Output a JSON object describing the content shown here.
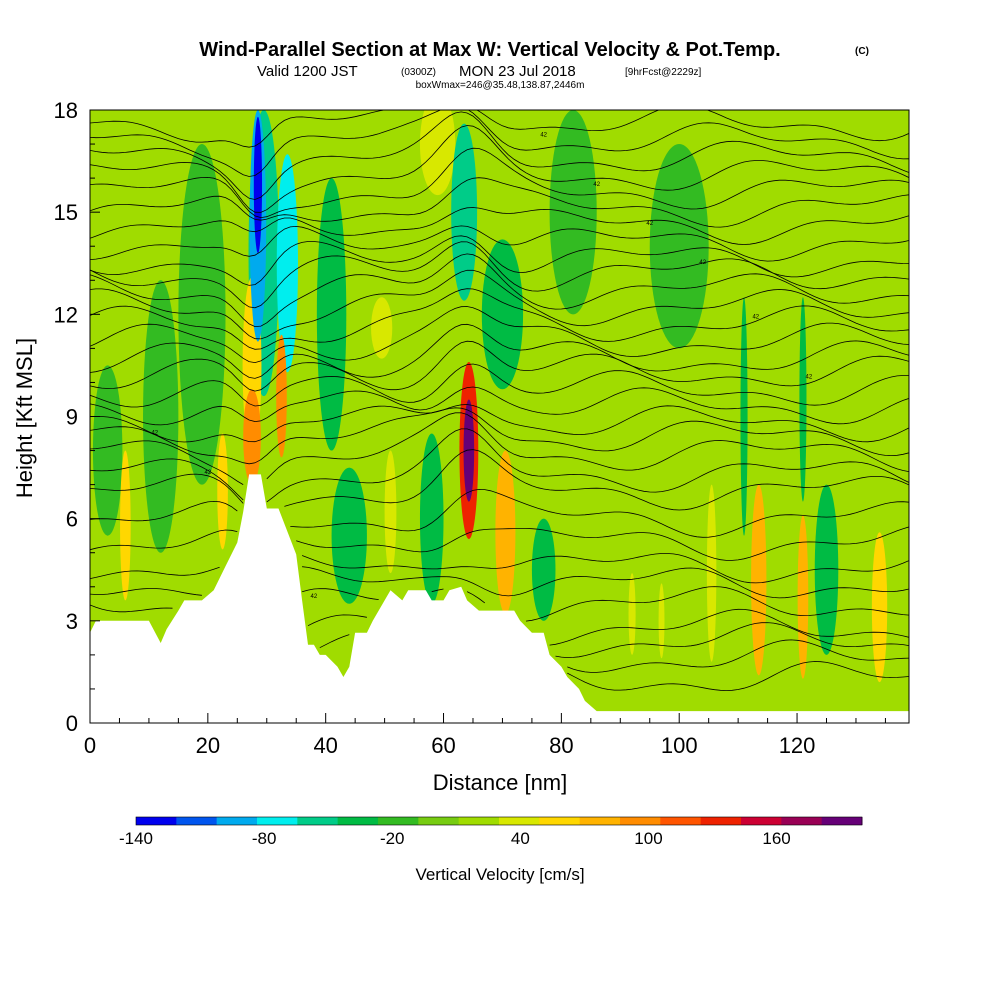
{
  "header": {
    "title": "Wind-Parallel Section at Max W: Vertical Velocity & Pot.Temp.",
    "title_mark": "(C)",
    "valid_prefix": "Valid 1200 JST",
    "valid_z": "(0300Z)",
    "valid_date": "MON 23 Jul 2018",
    "fcst": "[9hrFcst@2229z]",
    "box_info": "boxWmax=246@35.48,138.87,2446m"
  },
  "chart_data": {
    "type": "heatmap",
    "xlabel": "Distance [nm]",
    "ylabel": "Height [Kft MSL]",
    "xlim": [
      0,
      139
    ],
    "ylim": [
      0,
      18
    ],
    "x_ticks": [
      0,
      20,
      40,
      60,
      80,
      100,
      120
    ],
    "y_ticks": [
      0,
      3,
      6,
      9,
      12,
      15,
      18
    ],
    "x_tick_labels": [
      "0",
      "20",
      "40",
      "60",
      "80",
      "100",
      "120"
    ],
    "y_tick_labels": [
      "0",
      "3",
      "6",
      "9",
      "12",
      "15",
      "18"
    ],
    "x_minor_step": 5,
    "y_minor_step": 1,
    "background_color": "#a0dc00",
    "terrain_color": "#ffffff",
    "terrain_profile": [
      [
        0,
        2.65
      ],
      [
        1,
        3
      ],
      [
        10,
        3
      ],
      [
        12,
        2.35
      ],
      [
        13,
        2.75
      ],
      [
        15,
        3.3
      ],
      [
        16,
        3.6
      ],
      [
        19,
        3.6
      ],
      [
        21,
        3.9
      ],
      [
        22,
        4.25
      ],
      [
        23,
        4.6
      ],
      [
        25,
        5.3
      ],
      [
        26,
        6.2
      ],
      [
        27,
        7.3
      ],
      [
        29,
        7.3
      ],
      [
        30,
        6.3
      ],
      [
        31,
        6.3
      ],
      [
        32,
        6.3
      ],
      [
        35,
        4.95
      ],
      [
        36,
        3.6
      ],
      [
        37,
        2.3
      ],
      [
        38,
        2.3
      ],
      [
        39,
        2.0
      ],
      [
        40,
        2.0
      ],
      [
        42,
        1.65
      ],
      [
        43,
        1.35
      ],
      [
        44,
        1.65
      ],
      [
        45,
        2.65
      ],
      [
        47,
        2.65
      ],
      [
        48,
        3.0
      ],
      [
        50,
        3.6
      ],
      [
        51,
        3.9
      ],
      [
        53,
        3.6
      ],
      [
        54,
        3.9
      ],
      [
        57,
        3.9
      ],
      [
        58,
        3.6
      ],
      [
        60,
        3.6
      ],
      [
        61,
        3.9
      ],
      [
        63,
        4.0
      ],
      [
        64,
        3.6
      ],
      [
        66,
        3.3
      ],
      [
        67,
        3.3
      ],
      [
        72,
        3.3
      ],
      [
        73,
        3.0
      ],
      [
        75,
        2.65
      ],
      [
        77,
        2.65
      ],
      [
        78,
        2.0
      ],
      [
        80,
        1.65
      ],
      [
        81,
        1.35
      ],
      [
        83,
        1.0
      ],
      [
        84,
        0.65
      ],
      [
        86,
        0.35
      ],
      [
        88,
        0.35
      ],
      [
        139,
        0.35
      ]
    ],
    "w_field": [
      {
        "x": 28.5,
        "y": 15.8,
        "sx": 0.7,
        "sy": 2.0,
        "v": -140
      },
      {
        "x": 28.5,
        "y": 14.6,
        "sx": 1.4,
        "sy": 3.4,
        "v": -100
      },
      {
        "x": 29.5,
        "y": 13.8,
        "sx": 2.6,
        "sy": 4.2,
        "v": -60
      },
      {
        "x": 33.5,
        "y": 13.5,
        "sx": 1.8,
        "sy": 3.2,
        "v": -80
      },
      {
        "x": 63.5,
        "y": 15.0,
        "sx": 2.2,
        "sy": 2.6,
        "v": -60
      },
      {
        "x": 70,
        "y": 12.0,
        "sx": 3.5,
        "sy": 2.2,
        "v": -30
      },
      {
        "x": 27.5,
        "y": 10.5,
        "sx": 1.6,
        "sy": 2.6,
        "v": 70
      },
      {
        "x": 27.5,
        "y": 8.4,
        "sx": 1.5,
        "sy": 1.4,
        "v": 110
      },
      {
        "x": 32.5,
        "y": 9.6,
        "sx": 0.9,
        "sy": 1.8,
        "v": 100
      },
      {
        "x": 22.5,
        "y": 6.8,
        "sx": 0.9,
        "sy": 1.7,
        "v": 60
      },
      {
        "x": 64.3,
        "y": 8.0,
        "sx": 1.6,
        "sy": 2.6,
        "v": 150
      },
      {
        "x": 64.3,
        "y": 8.0,
        "sx": 0.9,
        "sy": 1.5,
        "v": 220
      },
      {
        "x": 70.5,
        "y": 5.6,
        "sx": 1.7,
        "sy": 2.4,
        "v": 80
      },
      {
        "x": 6,
        "y": 5.8,
        "sx": 0.9,
        "sy": 2.2,
        "v": 60
      },
      {
        "x": 49.5,
        "y": 11.6,
        "sx": 1.8,
        "sy": 0.9,
        "v": 45
      },
      {
        "x": 51,
        "y": 6.2,
        "sx": 1.0,
        "sy": 1.8,
        "v": 40
      },
      {
        "x": 113.5,
        "y": 4.2,
        "sx": 1.3,
        "sy": 2.8,
        "v": 90
      },
      {
        "x": 121,
        "y": 3.7,
        "sx": 0.9,
        "sy": 2.4,
        "v": 90
      },
      {
        "x": 134,
        "y": 3.4,
        "sx": 1.3,
        "sy": 2.2,
        "v": 75
      },
      {
        "x": 105.5,
        "y": 4.4,
        "sx": 0.8,
        "sy": 2.6,
        "v": 50
      },
      {
        "x": 92,
        "y": 3.2,
        "sx": 0.6,
        "sy": 1.2,
        "v": 45
      },
      {
        "x": 97,
        "y": 3.0,
        "sx": 0.5,
        "sy": 1.1,
        "v": 45
      },
      {
        "x": 111,
        "y": 9.0,
        "sx": 0.6,
        "sy": 3.5,
        "v": -30
      },
      {
        "x": 121,
        "y": 9.5,
        "sx": 0.6,
        "sy": 3.0,
        "v": -35
      },
      {
        "x": 19,
        "y": 12.0,
        "sx": 4.0,
        "sy": 5.0,
        "v": -20
      },
      {
        "x": 82,
        "y": 15.0,
        "sx": 4.0,
        "sy": 3.0,
        "v": -15
      },
      {
        "x": 100,
        "y": 14.0,
        "sx": 5.0,
        "sy": 3.0,
        "v": -12
      },
      {
        "x": 44,
        "y": 5.5,
        "sx": 3.0,
        "sy": 2.0,
        "v": -25
      },
      {
        "x": 58,
        "y": 6.0,
        "sx": 2.0,
        "sy": 2.5,
        "v": -25
      },
      {
        "x": 77,
        "y": 4.5,
        "sx": 2.0,
        "sy": 1.5,
        "v": -30
      },
      {
        "x": 125,
        "y": 4.5,
        "sx": 2.0,
        "sy": 2.5,
        "v": -25
      },
      {
        "x": 3,
        "y": 8.0,
        "sx": 2.5,
        "sy": 2.5,
        "v": -20
      },
      {
        "x": 12,
        "y": 9.0,
        "sx": 3.0,
        "sy": 4.0,
        "v": -15
      },
      {
        "x": 41,
        "y": 12.0,
        "sx": 2.5,
        "sy": 4.0,
        "v": -25
      },
      {
        "x": 59,
        "y": 17.0,
        "sx": 3.0,
        "sy": 1.5,
        "v": 40
      }
    ],
    "theta_levels": [
      1.3,
      1.9,
      2.4,
      2.8,
      3.5,
      4.1,
      4.6,
      5.3,
      6.0,
      6.8,
      7.3,
      7.9,
      8.4,
      8.8,
      9.3,
      9.8,
      10.3,
      10.7,
      11.2,
      11.7,
      12.2,
      12.7,
      13.2,
      13.6,
      14.1,
      14.6,
      15.1,
      15.6,
      16.1,
      16.6,
      17.1,
      17.6
    ],
    "theta_label_text": "42",
    "colorbar": {
      "title": "Vertical Velocity [cm/s]",
      "min": -140,
      "max": 200,
      "step": 20,
      "colors": [
        "#0000ee",
        "#0055ee",
        "#00aaee",
        "#00eeee",
        "#00cc88",
        "#00bb44",
        "#33bb22",
        "#77cc11",
        "#a0dc00",
        "#d8e800",
        "#ffd700",
        "#ffb300",
        "#ff8c00",
        "#ff5500",
        "#ee2200",
        "#cc0033",
        "#990055",
        "#660077"
      ],
      "tick_values": [
        -140,
        -80,
        -20,
        40,
        100,
        160
      ],
      "tick_labels": [
        "-140",
        "-80",
        "-20",
        "40",
        "100",
        "160"
      ]
    }
  }
}
